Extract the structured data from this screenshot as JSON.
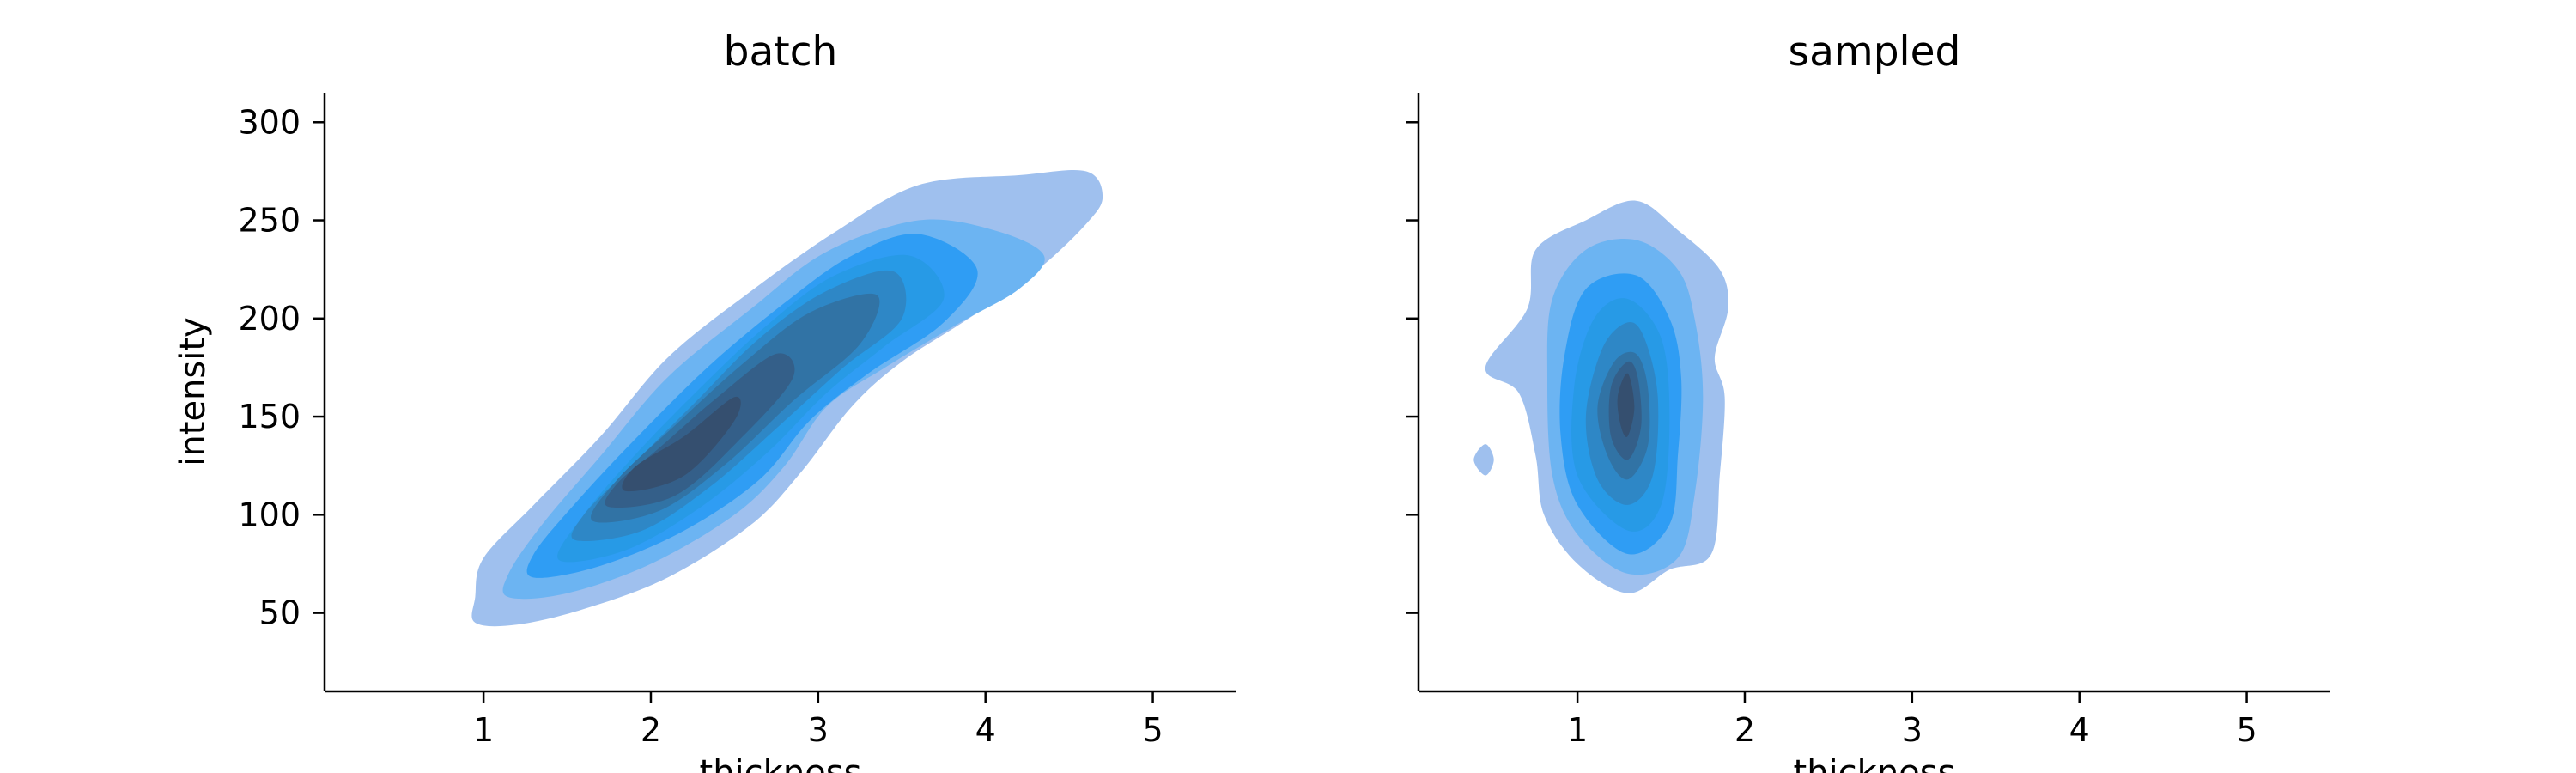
{
  "chart_data": [
    {
      "type": "kde-contour",
      "title": "batch",
      "xlabel": "thickness",
      "ylabel": "intensity",
      "xlim": [
        0.05,
        5.5
      ],
      "ylim": [
        10,
        315
      ],
      "x_ticks": [
        1,
        2,
        3,
        4,
        5
      ],
      "y_ticks": [
        50,
        100,
        150,
        200,
        250,
        300
      ],
      "levels": [
        [
          [
            0.95,
            58
          ],
          [
            0.95,
            45
          ],
          [
            1.2,
            44
          ],
          [
            1.6,
            52
          ],
          [
            2.1,
            68
          ],
          [
            2.6,
            95
          ],
          [
            2.9,
            122
          ],
          [
            3.2,
            155
          ],
          [
            3.5,
            178
          ],
          [
            3.9,
            200
          ],
          [
            4.3,
            224
          ],
          [
            4.6,
            248
          ],
          [
            4.7,
            262
          ],
          [
            4.6,
            275
          ],
          [
            4.2,
            273
          ],
          [
            3.6,
            268
          ],
          [
            3.1,
            244
          ],
          [
            2.6,
            214
          ],
          [
            2.1,
            180
          ],
          [
            1.7,
            140
          ],
          [
            1.3,
            105
          ],
          [
            1.0,
            78
          ],
          [
            0.95,
            58
          ]
        ],
        [
          [
            1.15,
            58
          ],
          [
            1.5,
            60
          ],
          [
            2.0,
            75
          ],
          [
            2.5,
            100
          ],
          [
            2.8,
            125
          ],
          [
            3.05,
            155
          ],
          [
            3.4,
            175
          ],
          [
            3.85,
            198
          ],
          [
            4.2,
            215
          ],
          [
            4.35,
            232
          ],
          [
            4.05,
            245
          ],
          [
            3.6,
            250
          ],
          [
            3.05,
            234
          ],
          [
            2.6,
            205
          ],
          [
            2.1,
            170
          ],
          [
            1.7,
            130
          ],
          [
            1.35,
            95
          ],
          [
            1.15,
            70
          ],
          [
            1.15,
            58
          ]
        ],
        [
          [
            1.3,
            68
          ],
          [
            1.7,
            74
          ],
          [
            2.2,
            92
          ],
          [
            2.65,
            118
          ],
          [
            2.95,
            148
          ],
          [
            3.3,
            172
          ],
          [
            3.75,
            198
          ],
          [
            3.95,
            225
          ],
          [
            3.6,
            243
          ],
          [
            3.2,
            232
          ],
          [
            2.8,
            208
          ],
          [
            2.35,
            176
          ],
          [
            1.9,
            138
          ],
          [
            1.55,
            106
          ],
          [
            1.3,
            80
          ],
          [
            1.3,
            68
          ]
        ],
        [
          [
            1.45,
            77
          ],
          [
            1.85,
            82
          ],
          [
            2.3,
            104
          ],
          [
            2.7,
            132
          ],
          [
            3.05,
            162
          ],
          [
            3.4,
            186
          ],
          [
            3.75,
            210
          ],
          [
            3.55,
            232
          ],
          [
            3.1,
            222
          ],
          [
            2.7,
            197
          ],
          [
            2.3,
            165
          ],
          [
            1.9,
            130
          ],
          [
            1.6,
            100
          ],
          [
            1.45,
            77
          ]
        ],
        [
          [
            1.55,
            87
          ],
          [
            1.95,
            92
          ],
          [
            2.35,
            114
          ],
          [
            2.75,
            144
          ],
          [
            3.15,
            175
          ],
          [
            3.5,
            200
          ],
          [
            3.45,
            224
          ],
          [
            3.05,
            214
          ],
          [
            2.65,
            190
          ],
          [
            2.25,
            156
          ],
          [
            1.85,
            122
          ],
          [
            1.6,
            100
          ],
          [
            1.55,
            87
          ]
        ],
        [
          [
            1.65,
            97
          ],
          [
            2.05,
            102
          ],
          [
            2.45,
            126
          ],
          [
            2.85,
            158
          ],
          [
            3.25,
            187
          ],
          [
            3.35,
            212
          ],
          [
            2.95,
            203
          ],
          [
            2.55,
            177
          ],
          [
            2.15,
            146
          ],
          [
            1.8,
            118
          ],
          [
            1.65,
            97
          ]
        ],
        [
          [
            1.75,
            104
          ],
          [
            2.15,
            110
          ],
          [
            2.55,
            140
          ],
          [
            2.85,
            170
          ],
          [
            2.75,
            182
          ],
          [
            2.4,
            160
          ],
          [
            2.05,
            134
          ],
          [
            1.8,
            116
          ],
          [
            1.75,
            104
          ]
        ],
        [
          [
            1.85,
            112
          ],
          [
            2.2,
            120
          ],
          [
            2.5,
            148
          ],
          [
            2.5,
            160
          ],
          [
            2.2,
            140
          ],
          [
            1.9,
            124
          ],
          [
            1.85,
            112
          ]
        ]
      ],
      "level_colors": [
        "#9fc0ee",
        "#6cb4f2",
        "#2f9df4",
        "#279ae6",
        "#2e87c6",
        "#3173a5",
        "#345f89",
        "#354f6f"
      ]
    },
    {
      "type": "kde-contour",
      "title": "sampled",
      "xlabel": "thickness",
      "ylabel": "",
      "xlim": [
        0.05,
        5.5
      ],
      "ylim": [
        10,
        315
      ],
      "x_ticks": [
        1,
        2,
        3,
        4,
        5
      ],
      "y_ticks": [
        50,
        100,
        150,
        200,
        250,
        300
      ],
      "levels": [
        [
          [
            1.3,
            60
          ],
          [
            1.55,
            72
          ],
          [
            1.8,
            80
          ],
          [
            1.85,
            120
          ],
          [
            1.88,
            160
          ],
          [
            1.82,
            180
          ],
          [
            1.9,
            205
          ],
          [
            1.85,
            225
          ],
          [
            1.6,
            245
          ],
          [
            1.35,
            260
          ],
          [
            1.05,
            250
          ],
          [
            0.75,
            235
          ],
          [
            0.7,
            205
          ],
          [
            0.45,
            175
          ],
          [
            0.65,
            162
          ],
          [
            0.75,
            130
          ],
          [
            0.8,
            100
          ],
          [
            1.0,
            75
          ],
          [
            1.3,
            60
          ]
        ],
        [
          [
            0.45,
            136
          ],
          [
            0.5,
            128
          ],
          [
            0.45,
            120
          ],
          [
            0.38,
            128
          ],
          [
            0.45,
            136
          ]
        ],
        [
          [
            1.3,
            70
          ],
          [
            1.6,
            78
          ],
          [
            1.7,
            110
          ],
          [
            1.75,
            160
          ],
          [
            1.7,
            200
          ],
          [
            1.6,
            225
          ],
          [
            1.35,
            240
          ],
          [
            1.05,
            235
          ],
          [
            0.85,
            210
          ],
          [
            0.82,
            170
          ],
          [
            0.85,
            120
          ],
          [
            1.0,
            90
          ],
          [
            1.3,
            70
          ]
        ],
        [
          [
            1.3,
            80
          ],
          [
            1.55,
            95
          ],
          [
            1.6,
            130
          ],
          [
            1.62,
            170
          ],
          [
            1.55,
            200
          ],
          [
            1.35,
            222
          ],
          [
            1.05,
            215
          ],
          [
            0.92,
            180
          ],
          [
            0.9,
            140
          ],
          [
            1.0,
            105
          ],
          [
            1.3,
            80
          ]
        ],
        [
          [
            1.3,
            92
          ],
          [
            1.5,
            105
          ],
          [
            1.55,
            150
          ],
          [
            1.5,
            190
          ],
          [
            1.3,
            210
          ],
          [
            1.1,
            200
          ],
          [
            0.98,
            165
          ],
          [
            1.0,
            120
          ],
          [
            1.3,
            92
          ]
        ],
        [
          [
            1.3,
            105
          ],
          [
            1.45,
            120
          ],
          [
            1.48,
            160
          ],
          [
            1.4,
            190
          ],
          [
            1.3,
            198
          ],
          [
            1.15,
            185
          ],
          [
            1.05,
            150
          ],
          [
            1.12,
            118
          ],
          [
            1.3,
            105
          ]
        ],
        [
          [
            1.3,
            118
          ],
          [
            1.42,
            135
          ],
          [
            1.42,
            165
          ],
          [
            1.35,
            182
          ],
          [
            1.22,
            178
          ],
          [
            1.12,
            155
          ],
          [
            1.18,
            130
          ],
          [
            1.3,
            118
          ]
        ],
        [
          [
            1.3,
            128
          ],
          [
            1.38,
            145
          ],
          [
            1.36,
            170
          ],
          [
            1.3,
            178
          ],
          [
            1.2,
            165
          ],
          [
            1.2,
            140
          ],
          [
            1.3,
            128
          ]
        ],
        [
          [
            1.3,
            140
          ],
          [
            1.34,
            155
          ],
          [
            1.3,
            172
          ],
          [
            1.24,
            160
          ],
          [
            1.26,
            145
          ],
          [
            1.3,
            140
          ]
        ]
      ],
      "level_colors": [
        "#9fc0ee",
        "#9fc0ee",
        "#6cb4f2",
        "#2f9df4",
        "#279ae6",
        "#2e87c6",
        "#3173a5",
        "#345f89",
        "#354f6f"
      ]
    }
  ]
}
